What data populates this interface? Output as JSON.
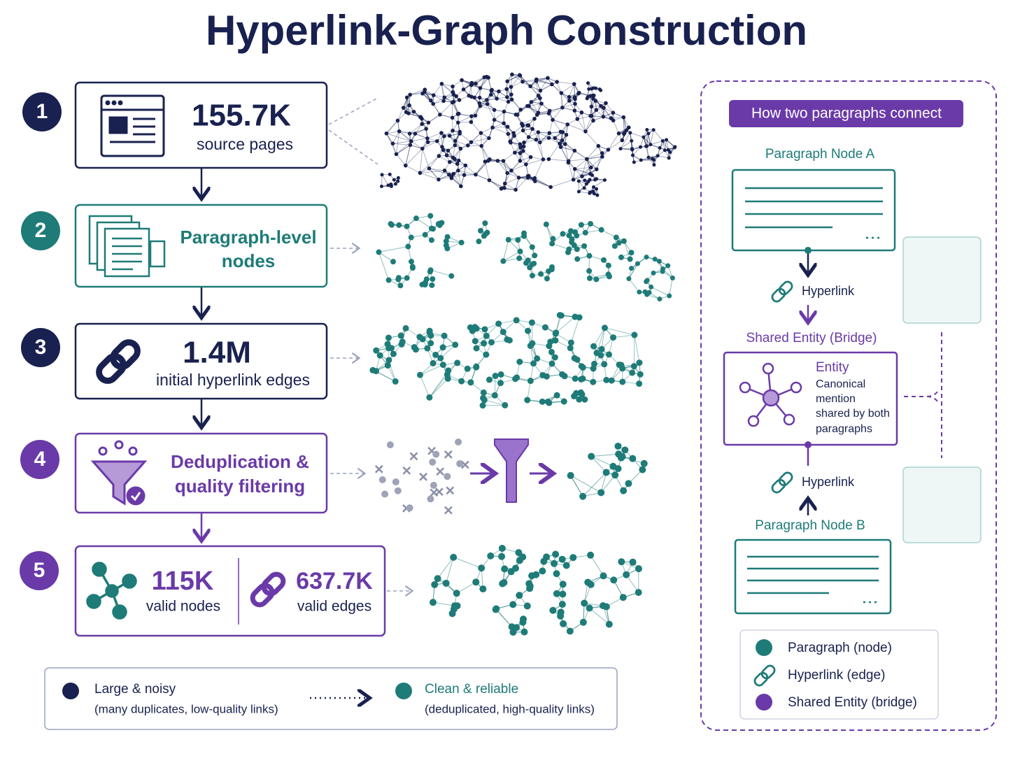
{
  "title": "Hyperlink-Graph Construction",
  "steps": [
    {
      "number": "1",
      "value": "155.7K",
      "label": "source pages"
    },
    {
      "number": "2",
      "lines": [
        "Paragraph-level",
        "nodes"
      ]
    },
    {
      "number": "3",
      "value": "1.4M",
      "label": "initial hyperlink edges"
    },
    {
      "number": "4",
      "lines": [
        "Deduplication &",
        "quality filtering"
      ]
    },
    {
      "number": "5",
      "stats": [
        {
          "value": "115K",
          "label": "valid nodes"
        },
        {
          "value": "637.7K",
          "label": "valid edges"
        }
      ]
    }
  ],
  "legend": [
    {
      "title": "Large & noisy",
      "note": "(many duplicates, low-quality links)"
    },
    {
      "title": "Clean & reliable",
      "note": "(deduplicated, high-quality links)"
    }
  ],
  "panel": {
    "title": "How two paragraphs connect",
    "node_a": "Paragraph Node A",
    "link_a": "Hyperlink",
    "bridge": "Shared Entity (Bridge)",
    "entity": {
      "title": "Entity",
      "description": [
        "Canonical",
        "mention",
        "shared by both",
        "paragraphs"
      ]
    },
    "link_b": "Hyperlink",
    "node_b": "Paragraph Node B",
    "key": [
      "Paragraph (node)",
      "Hyperlink (edge)",
      "Shared Entity (bridge)"
    ]
  }
}
